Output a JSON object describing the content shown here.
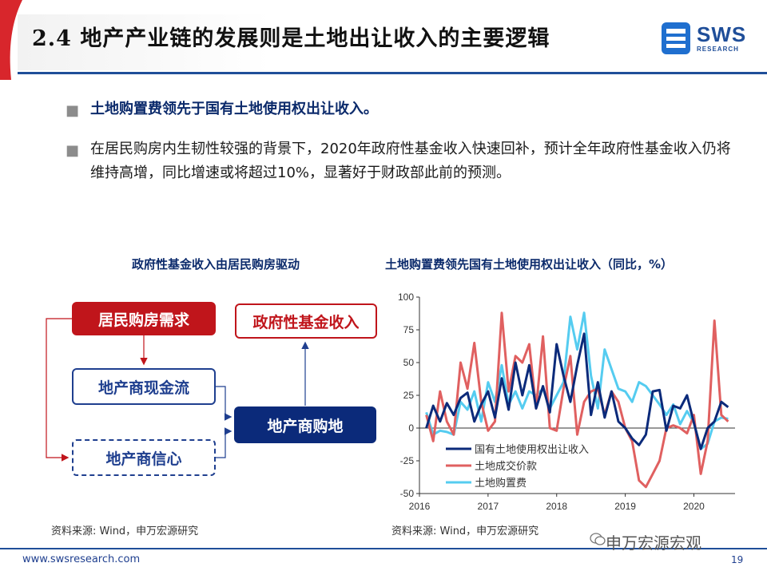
{
  "header": {
    "title": "2.4 地产产业链的发展则是土地出让收入的主要逻辑",
    "logo_text": "SWS",
    "logo_sub": "RESEARCH"
  },
  "bullets": [
    {
      "marker": "■",
      "text": "土地购置费领先于国有土地使用权出让收入。"
    },
    {
      "marker": "■",
      "text": "在居民购房内生韧性较强的背景下，2020年政府性基金收入快速回补，预计全年政府性基金收入仍将维持高增，同比增速或将超过10%，显著好于财政部此前的预测。"
    }
  ],
  "diagram": {
    "title": "政府性基金收入由居民购房驱动",
    "boxes": {
      "demand": "居民购房需求",
      "fund": "政府性基金收入",
      "cashflow": "地产商现金流",
      "land": "地产商购地",
      "confidence": "地产商信心"
    },
    "source": "资料来源: Wind，申万宏源研究"
  },
  "chart": {
    "source": "资料来源: Wind，申万宏源研究"
  },
  "chart_data": {
    "type": "line",
    "title": "土地购置费领先国有土地使用权出让收入（同比，%）",
    "xlabel": "",
    "ylabel": "",
    "x_ticks": [
      "2016",
      "2017",
      "2018",
      "2019",
      "2020"
    ],
    "y_ticks": [
      "100",
      "75",
      "50",
      "25",
      "0",
      "-25",
      "-50"
    ],
    "ylim": [
      -50,
      100
    ],
    "xlim": [
      2016.0,
      2020.6
    ],
    "grid": false,
    "legend_position": "bottom-left-inside",
    "series": [
      {
        "name": "国有土地使用权出让收入",
        "color": "#0b2a7a",
        "x": [
          2016.1,
          2016.2,
          2016.3,
          2016.4,
          2016.5,
          2016.6,
          2016.7,
          2016.8,
          2016.9,
          2017.0,
          2017.1,
          2017.2,
          2017.3,
          2017.4,
          2017.5,
          2017.6,
          2017.7,
          2017.8,
          2017.9,
          2018.0,
          2018.1,
          2018.2,
          2018.3,
          2018.4,
          2018.5,
          2018.6,
          2018.7,
          2018.8,
          2018.9,
          2019.0,
          2019.1,
          2019.2,
          2019.3,
          2019.4,
          2019.5,
          2019.6,
          2019.7,
          2019.8,
          2019.9,
          2020.0,
          2020.1,
          2020.2,
          2020.3,
          2020.4,
          2020.5
        ],
        "y": [
          0,
          17,
          5,
          19,
          10,
          23,
          27,
          5,
          18,
          28,
          8,
          38,
          14,
          50,
          25,
          48,
          15,
          32,
          12,
          64,
          40,
          20,
          48,
          72,
          10,
          35,
          8,
          28,
          5,
          0,
          -8,
          -13,
          -5,
          28,
          29,
          -2,
          17,
          15,
          25,
          4,
          -16,
          0,
          5,
          20,
          16
        ]
      },
      {
        "name": "土地成交价款",
        "color": "#e06060",
        "x": [
          2016.1,
          2016.2,
          2016.3,
          2016.4,
          2016.5,
          2016.6,
          2016.7,
          2016.8,
          2016.9,
          2017.0,
          2017.1,
          2017.2,
          2017.3,
          2017.4,
          2017.5,
          2017.6,
          2017.7,
          2017.8,
          2017.9,
          2018.0,
          2018.1,
          2018.2,
          2018.3,
          2018.4,
          2018.5,
          2018.6,
          2018.7,
          2018.8,
          2018.9,
          2019.0,
          2019.1,
          2019.2,
          2019.3,
          2019.4,
          2019.5,
          2019.6,
          2019.7,
          2019.8,
          2019.9,
          2020.0,
          2020.1,
          2020.2,
          2020.3,
          2020.4,
          2020.5
        ],
        "y": [
          10,
          -10,
          28,
          5,
          -5,
          50,
          30,
          65,
          20,
          -2,
          5,
          88,
          28,
          55,
          50,
          64,
          15,
          70,
          0,
          -2,
          30,
          55,
          -5,
          20,
          28,
          30,
          10,
          28,
          20,
          0,
          -10,
          -40,
          -45,
          -35,
          -25,
          0,
          2,
          0,
          -4,
          10,
          -35,
          -10,
          82,
          10,
          5
        ]
      },
      {
        "name": "土地购置费",
        "color": "#55ccf0",
        "x": [
          2016.1,
          2016.2,
          2016.3,
          2016.4,
          2016.5,
          2016.6,
          2016.7,
          2016.8,
          2016.9,
          2017.0,
          2017.1,
          2017.2,
          2017.3,
          2017.4,
          2017.5,
          2017.6,
          2017.7,
          2017.8,
          2017.9,
          2018.0,
          2018.1,
          2018.2,
          2018.3,
          2018.4,
          2018.5,
          2018.6,
          2018.7,
          2018.8,
          2018.9,
          2019.0,
          2019.1,
          2019.2,
          2019.3,
          2019.4,
          2019.5,
          2019.6,
          2019.7,
          2019.8,
          2019.9,
          2020.0,
          2020.1,
          2020.2,
          2020.3,
          2020.4,
          2020.5
        ],
        "y": [
          12,
          -5,
          -2,
          -3,
          -5,
          20,
          14,
          28,
          5,
          35,
          20,
          48,
          18,
          28,
          15,
          28,
          25,
          30,
          15,
          25,
          35,
          85,
          60,
          88,
          40,
          15,
          60,
          45,
          30,
          28,
          20,
          35,
          32,
          25,
          18,
          10,
          18,
          3,
          13,
          4,
          -16,
          -12,
          5,
          8,
          7
        ]
      }
    ]
  },
  "footer": {
    "url": "www.swsresearch.com",
    "page": "19",
    "watermark": "申万宏源宏观"
  }
}
